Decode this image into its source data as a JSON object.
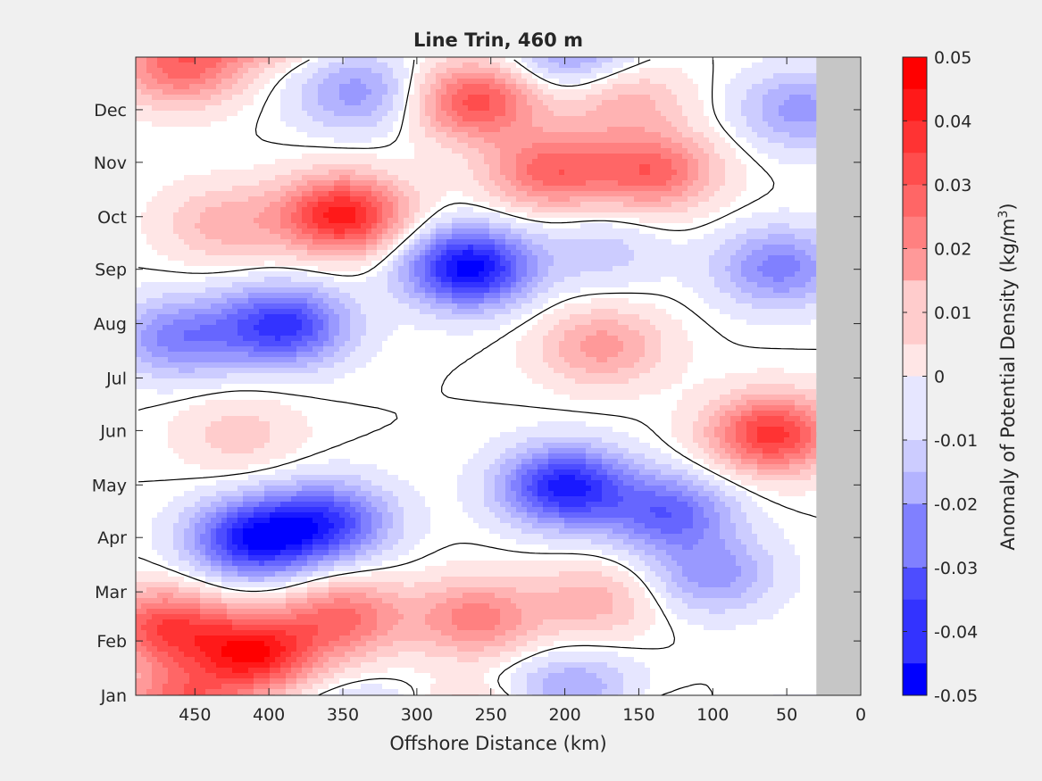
{
  "chart_data": {
    "type": "heatmap",
    "title": "Line Trin, 460 m",
    "xlabel": "Offshore Distance (km)",
    "ylabel": "",
    "colorbar_label_main": "Anomaly of Potential Density (kg/m",
    "colorbar_label_exp": "3",
    "colorbar_label_close": ")",
    "xlim": [
      490,
      0
    ],
    "x_reversed": true,
    "x_ticks": [
      450,
      400,
      350,
      300,
      250,
      200,
      150,
      100,
      50,
      0
    ],
    "y_ticks": [
      "Jan",
      "Feb",
      "Mar",
      "Apr",
      "May",
      "Jun",
      "Jul",
      "Aug",
      "Sep",
      "Oct",
      "Nov",
      "Dec"
    ],
    "y_tick_days": [
      1,
      32,
      60,
      91,
      121,
      152,
      182,
      213,
      244,
      274,
      305,
      335
    ],
    "ylim_days": [
      1,
      365
    ],
    "clim": [
      -0.05,
      0.05
    ],
    "colorbar_ticks": [
      "0.05",
      "0.04",
      "0.03",
      "0.02",
      "0.01",
      "0",
      "-0.01",
      "-0.02",
      "-0.03",
      "-0.04",
      "-0.05"
    ],
    "colors": {
      "positive": "#ff0000",
      "negative": "#0000ff",
      "zero": "#ffffff",
      "no_data": "#c6c6c6"
    },
    "no_data_x_range": [
      0,
      30
    ],
    "features": [
      {
        "sign": "positive",
        "x": 410,
        "day": 25,
        "value": 0.045
      },
      {
        "sign": "positive",
        "x": 470,
        "day": 40,
        "value": 0.035
      },
      {
        "sign": "positive",
        "x": 350,
        "day": 45,
        "value": 0.028
      },
      {
        "sign": "positive",
        "x": 260,
        "day": 45,
        "value": 0.025
      },
      {
        "sign": "positive",
        "x": 180,
        "day": 55,
        "value": 0.015
      },
      {
        "sign": "negative",
        "x": 190,
        "day": 5,
        "value": -0.01
      },
      {
        "sign": "negative",
        "x": 410,
        "day": 90,
        "value": -0.045
      },
      {
        "sign": "negative",
        "x": 360,
        "day": 100,
        "value": -0.035
      },
      {
        "sign": "negative",
        "x": 200,
        "day": 120,
        "value": -0.045
      },
      {
        "sign": "negative",
        "x": 130,
        "day": 105,
        "value": -0.03
      },
      {
        "sign": "negative",
        "x": 100,
        "day": 70,
        "value": -0.02
      },
      {
        "sign": "positive",
        "x": 420,
        "day": 150,
        "value": 0.01
      },
      {
        "sign": "positive",
        "x": 60,
        "day": 150,
        "value": 0.04
      },
      {
        "sign": "negative",
        "x": 390,
        "day": 212,
        "value": -0.04
      },
      {
        "sign": "negative",
        "x": 460,
        "day": 205,
        "value": -0.025
      },
      {
        "sign": "negative",
        "x": 265,
        "day": 245,
        "value": -0.05
      },
      {
        "sign": "positive",
        "x": 175,
        "day": 200,
        "value": 0.02
      },
      {
        "sign": "negative",
        "x": 175,
        "day": 255,
        "value": -0.01
      },
      {
        "sign": "negative",
        "x": 55,
        "day": 245,
        "value": -0.025
      },
      {
        "sign": "negative",
        "x": 40,
        "day": 335,
        "value": -0.02
      },
      {
        "sign": "positive",
        "x": 350,
        "day": 275,
        "value": 0.045
      },
      {
        "sign": "positive",
        "x": 430,
        "day": 270,
        "value": 0.015
      },
      {
        "sign": "positive",
        "x": 210,
        "day": 300,
        "value": 0.03
      },
      {
        "sign": "positive",
        "x": 140,
        "day": 300,
        "value": 0.03
      },
      {
        "sign": "positive",
        "x": 260,
        "day": 340,
        "value": 0.035
      },
      {
        "sign": "positive",
        "x": 460,
        "day": 360,
        "value": 0.03
      },
      {
        "sign": "positive",
        "x": 160,
        "day": 340,
        "value": 0.015
      },
      {
        "sign": "negative",
        "x": 340,
        "day": 345,
        "value": -0.02
      },
      {
        "sign": "negative",
        "x": 200,
        "day": 365,
        "value": -0.01
      }
    ]
  }
}
